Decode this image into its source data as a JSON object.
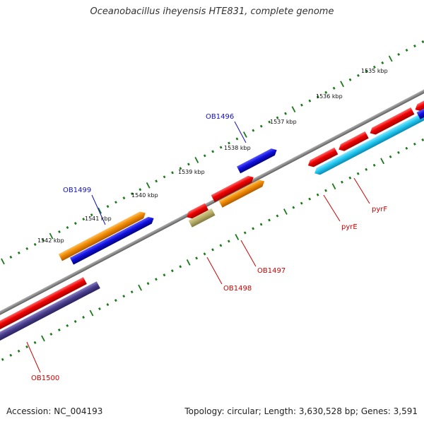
{
  "title": "Oceanobacillus iheyensis HTE831, complete genome",
  "footer": {
    "accession": "Accession: NC_004193",
    "summary": "Topology: circular; Length: 3,630,528 bp; Genes: 3,591"
  },
  "scale_labels": [
    "1535 kbp",
    "1536 kbp",
    "1537 kbp",
    "1538 kbp",
    "1539 kbp",
    "1540 kbp",
    "1541 kbp",
    "1542 kbp"
  ],
  "gene_labels": [
    {
      "id": "ob1496",
      "text": "OB1496",
      "color": "#1010c8"
    },
    {
      "id": "ob1499",
      "text": "OB1499",
      "color": "#1010c8"
    },
    {
      "id": "ob1500",
      "text": "OB1500",
      "color": "#d00000"
    },
    {
      "id": "ob1498",
      "text": "OB1498",
      "color": "#d00000"
    },
    {
      "id": "ob1497",
      "text": "OB1497",
      "color": "#d00000"
    },
    {
      "id": "pyre",
      "text": "pyrE",
      "color": "#d00000"
    },
    {
      "id": "pyrf",
      "text": "pyrF",
      "color": "#d00000"
    }
  ],
  "colors": {
    "backbone": "#8a8a8a",
    "tick": "#1a7a1a",
    "red": "#e80000",
    "orange": "#f08a00",
    "blue": "#1010e0",
    "navy": "#4a3f8c",
    "cyan": "#22c8f0",
    "khaki": "#b8b068"
  }
}
